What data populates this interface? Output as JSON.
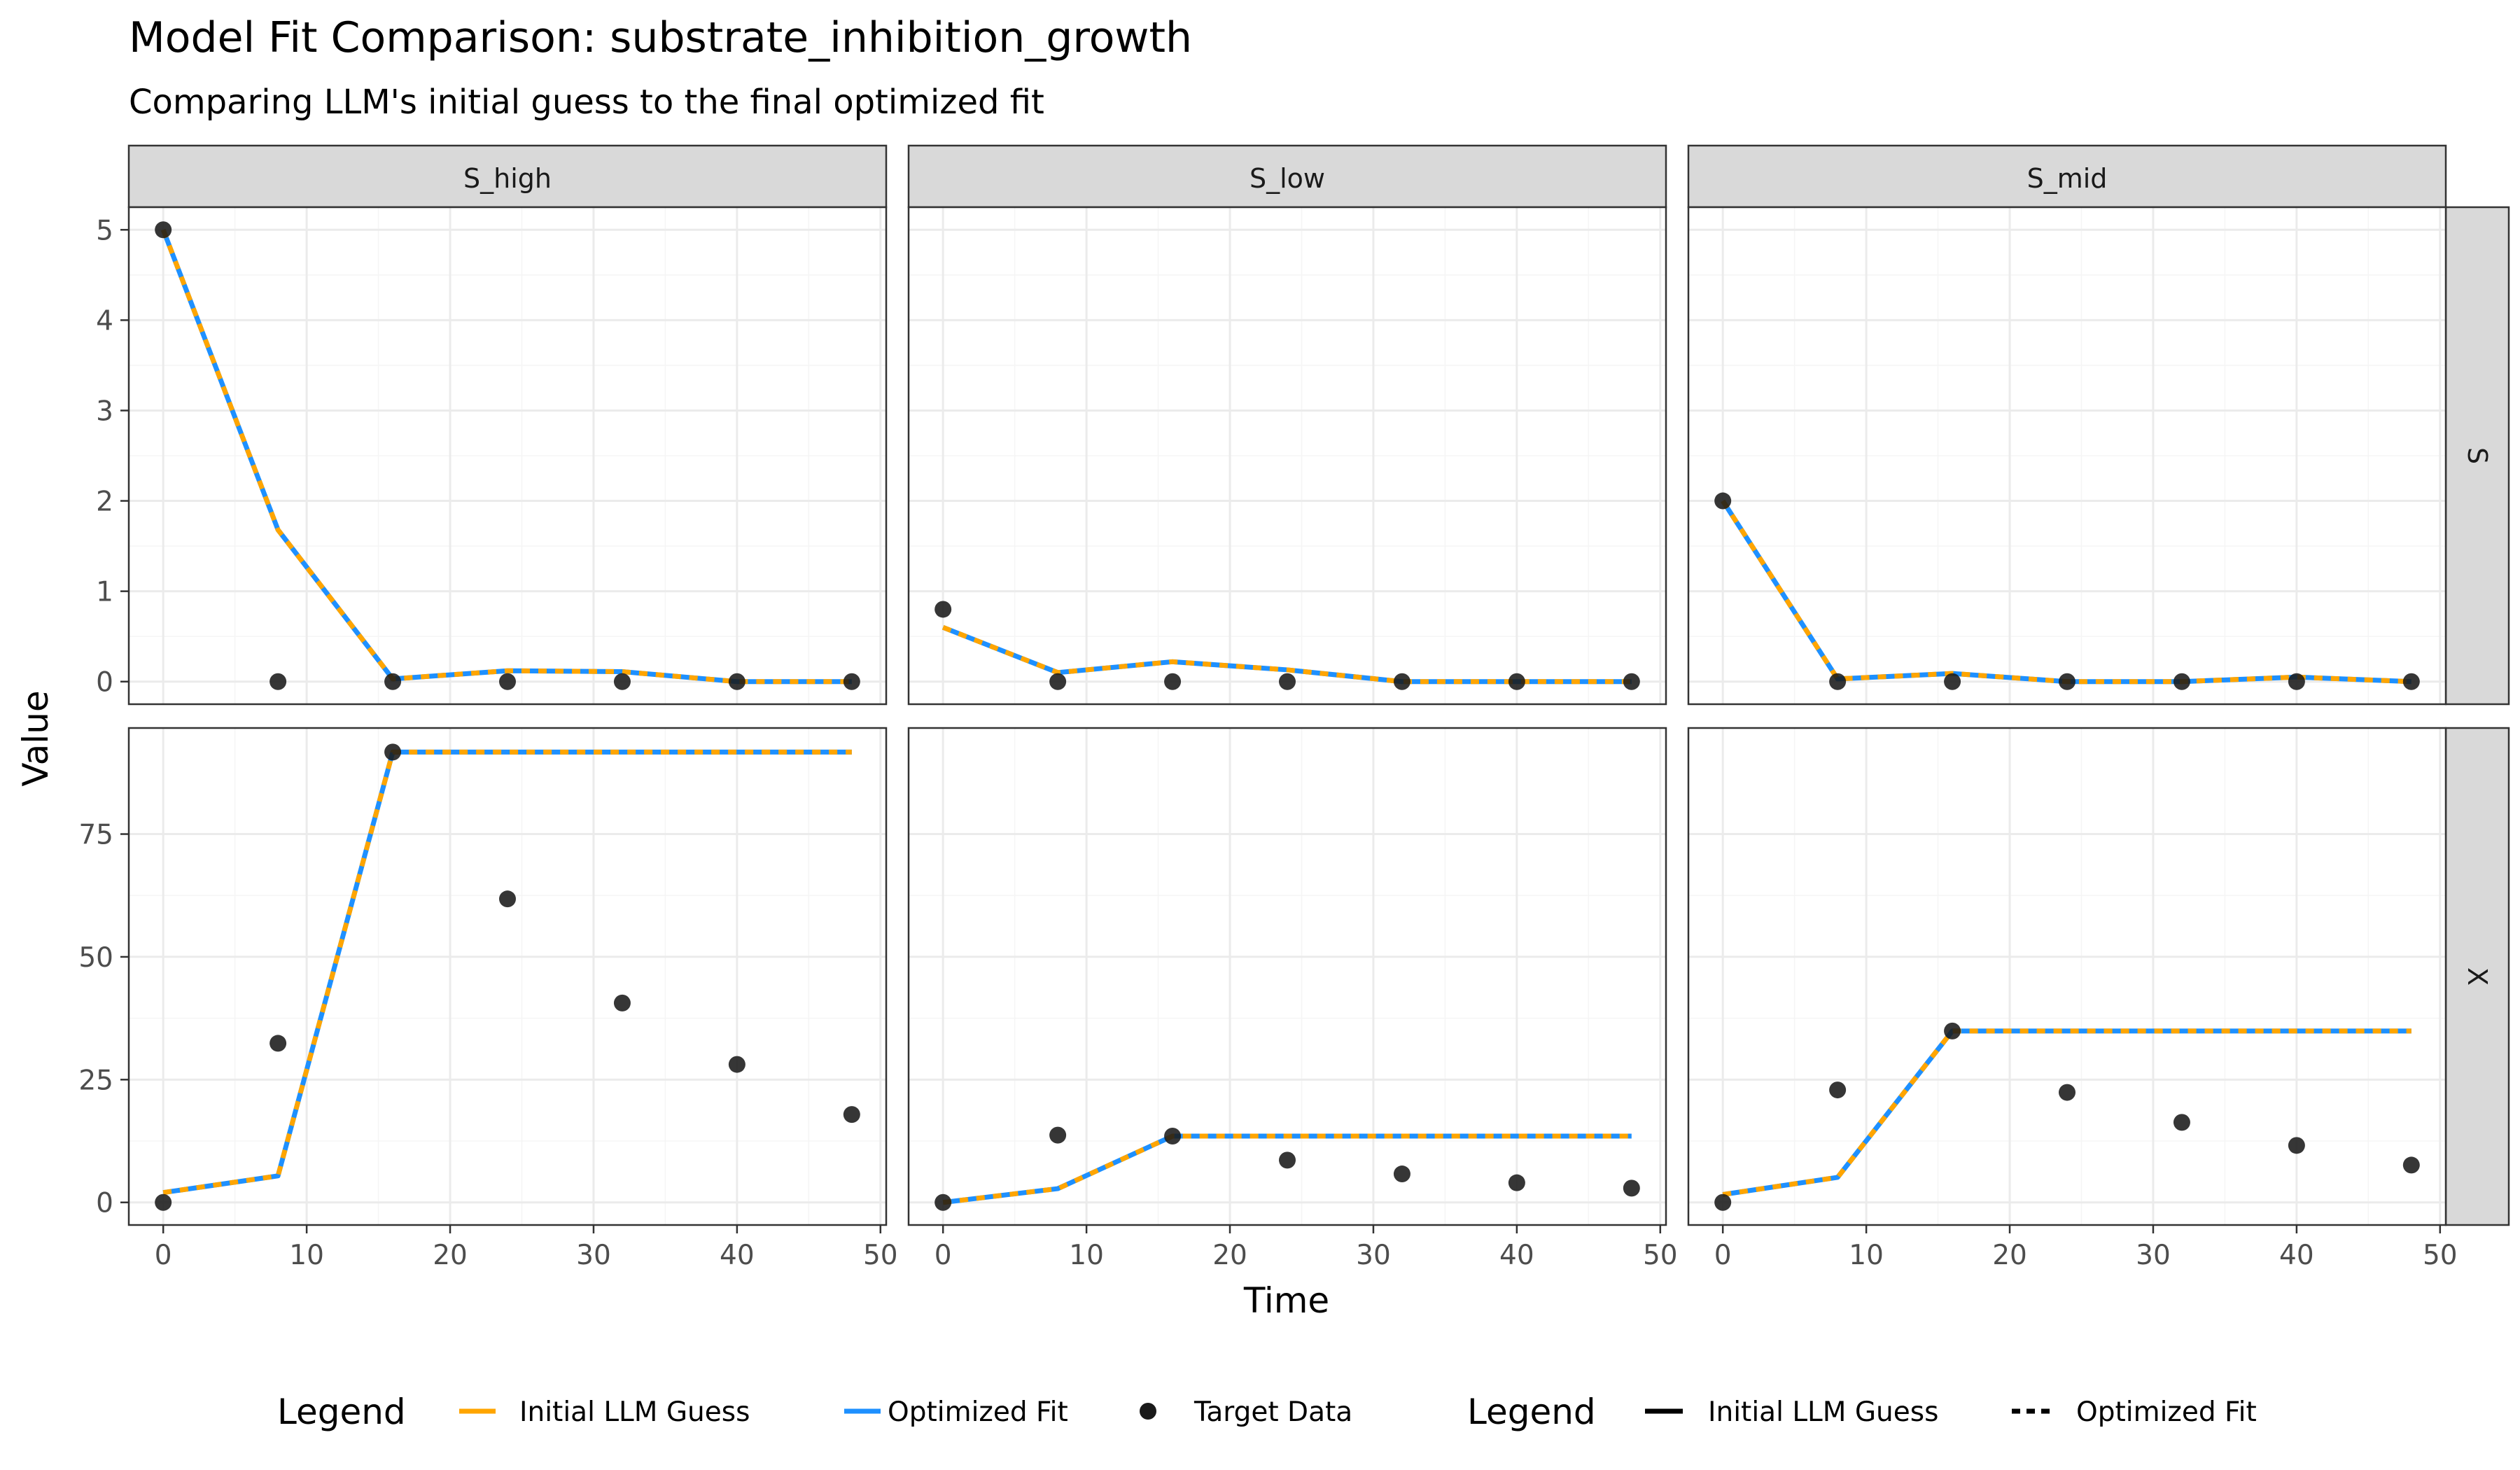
{
  "chart_data": {
    "type": "line",
    "title": "Model Fit Comparison: substrate_inhibition_growth",
    "subtitle": "Comparing LLM's initial guess to the final optimized fit",
    "xlabel": "Time",
    "ylabel": "Value",
    "columns": [
      "S_high",
      "S_low",
      "S_mid"
    ],
    "rows": [
      "S",
      "X"
    ],
    "xlim": [
      -2.4,
      50.4
    ],
    "x_ticks": [
      0,
      10,
      20,
      30,
      40,
      50
    ],
    "y_scales": {
      "S": {
        "ylim": [
          -0.25,
          5.25
        ],
        "ticks": [
          0,
          1,
          2,
          3,
          4,
          5
        ]
      },
      "X": {
        "ylim": [
          -4.6,
          96.6
        ],
        "ticks": [
          0,
          25,
          50,
          75
        ]
      }
    },
    "colors": {
      "initial_guess": "#FFA500",
      "optimized_fit": "#1E90FF",
      "target_data": "#1a1a1a",
      "strip_bg": "#d9d9d9",
      "grid_major": "#ebebeb",
      "grid_minor": "#f5f5f5",
      "panel_border": "#333333"
    },
    "time": [
      0,
      8,
      16,
      24,
      32,
      40,
      48
    ],
    "panels": [
      {
        "column": "S_high",
        "row": "S",
        "target": [
          5.0,
          0.0,
          0.0,
          0.0,
          0.0,
          0.0,
          0.0
        ],
        "initial_guess": [
          5.0,
          1.68,
          0.03,
          0.12,
          0.11,
          0.0,
          0.0
        ],
        "optimized_fit": [
          5.0,
          1.68,
          0.03,
          0.12,
          0.11,
          0.0,
          0.0
        ]
      },
      {
        "column": "S_low",
        "row": "S",
        "target": [
          0.8,
          0.0,
          0.0,
          0.0,
          0.0,
          0.0,
          0.0
        ],
        "initial_guess": [
          0.6,
          0.1,
          0.22,
          0.13,
          0.0,
          0.0,
          0.0
        ],
        "optimized_fit": [
          0.6,
          0.1,
          0.22,
          0.13,
          0.0,
          0.0,
          0.0
        ]
      },
      {
        "column": "S_mid",
        "row": "S",
        "target": [
          2.0,
          0.0,
          0.0,
          0.0,
          0.0,
          0.0,
          0.0
        ],
        "initial_guess": [
          2.0,
          0.03,
          0.09,
          0.0,
          0.0,
          0.05,
          0.0
        ],
        "optimized_fit": [
          2.0,
          0.03,
          0.09,
          0.0,
          0.0,
          0.05,
          0.0
        ]
      },
      {
        "column": "S_high",
        "row": "X",
        "target": [
          0.0,
          32.4,
          91.7,
          61.8,
          40.6,
          28.1,
          17.9
        ],
        "initial_guess": [
          2.0,
          5.4,
          91.7,
          91.7,
          91.7,
          91.7,
          91.7
        ],
        "optimized_fit": [
          2.0,
          5.4,
          91.7,
          91.7,
          91.7,
          91.7,
          91.7
        ]
      },
      {
        "column": "S_low",
        "row": "X",
        "target": [
          0.0,
          13.7,
          13.5,
          8.6,
          5.8,
          4.0,
          2.9
        ],
        "initial_guess": [
          0.0,
          2.8,
          13.5,
          13.5,
          13.5,
          13.5,
          13.5
        ],
        "optimized_fit": [
          0.0,
          2.8,
          13.5,
          13.5,
          13.5,
          13.5,
          13.5
        ]
      },
      {
        "column": "S_mid",
        "row": "X",
        "target": [
          0.0,
          22.9,
          34.9,
          22.4,
          16.3,
          11.6,
          7.6
        ],
        "initial_guess": [
          1.6,
          5.1,
          34.9,
          34.9,
          34.9,
          34.9,
          34.9
        ],
        "optimized_fit": [
          1.6,
          5.1,
          34.9,
          34.9,
          34.9,
          34.9,
          34.9
        ]
      }
    ],
    "legend": {
      "position": "bottom",
      "color_title": "Legend",
      "color_entries": [
        "Initial LLM Guess",
        "Optimized Fit",
        "Target Data"
      ],
      "linetype_title": "Legend",
      "linetype_entries": [
        "Initial LLM Guess",
        "Optimized Fit"
      ]
    }
  }
}
